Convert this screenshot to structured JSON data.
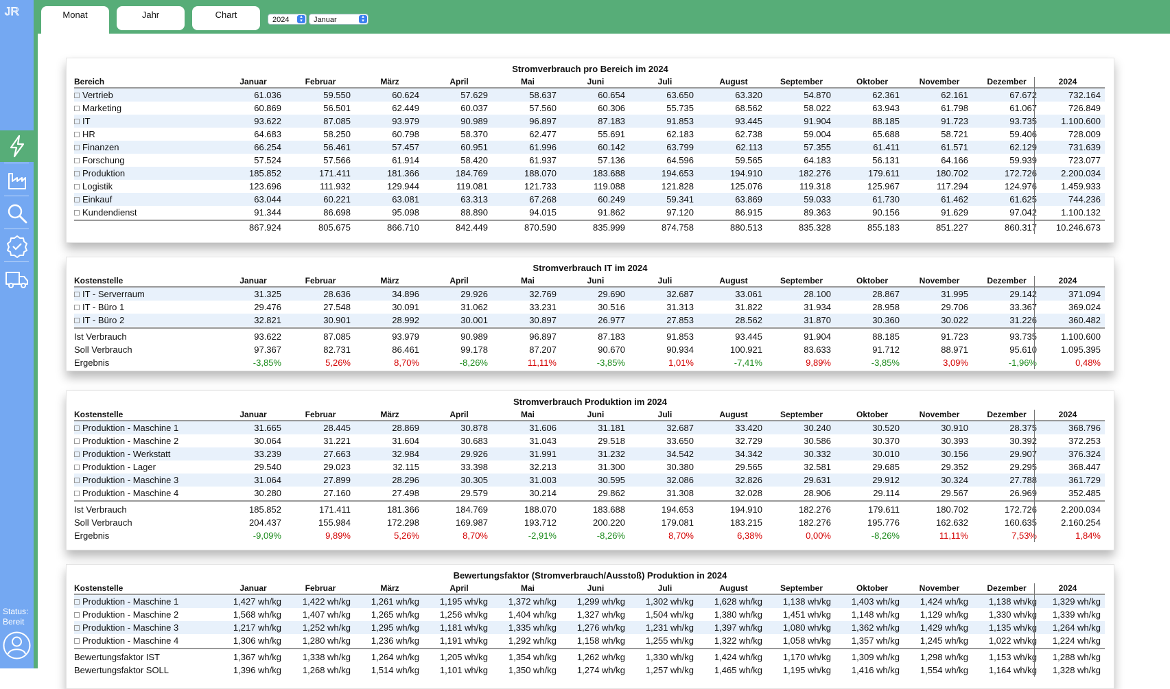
{
  "sidebar": {
    "logo": "JR",
    "nav": [
      {
        "icon": "lightning-icon",
        "active": true
      },
      {
        "icon": "factory-icon",
        "active": false
      },
      {
        "icon": "search-icon",
        "active": false
      },
      {
        "icon": "verified-badge-icon",
        "active": false
      },
      {
        "icon": "truck-icon",
        "active": false
      }
    ],
    "status_label": "Status:",
    "status_value": "Bereit",
    "avatar_icon": "user-icon"
  },
  "tabs": [
    "Monat",
    "Jahr",
    "Chart"
  ],
  "active_tab": "Monat",
  "year_select": "2024",
  "month_select": "Januar",
  "colors": {
    "green": "#57ad78",
    "blue": "#74a8f2",
    "positive": "#d40000",
    "negative": "#1b8a1b",
    "row_alt": "#e8f1fb"
  },
  "months": [
    "Januar",
    "Februar",
    "März",
    "April",
    "Mai",
    "Juni",
    "Juli",
    "August",
    "September",
    "Oktober",
    "November",
    "Dezember"
  ],
  "year_col": "2024",
  "tables": [
    {
      "title": "Stromverbrauch pro Bereich im 2024",
      "first_col": "Bereich",
      "rows": [
        {
          "label": "Vertrieb",
          "values": [
            "61.036",
            "59.550",
            "60.624",
            "57.629",
            "58.637",
            "60.654",
            "63.650",
            "63.320",
            "54.870",
            "62.361",
            "62.161",
            "67.672"
          ],
          "total": "732.164"
        },
        {
          "label": "Marketing",
          "values": [
            "60.869",
            "56.501",
            "62.449",
            "60.037",
            "57.560",
            "60.306",
            "55.735",
            "68.562",
            "58.022",
            "63.943",
            "61.798",
            "61.067"
          ],
          "total": "726.849"
        },
        {
          "label": "IT",
          "values": [
            "93.622",
            "87.085",
            "93.979",
            "90.989",
            "96.897",
            "87.183",
            "91.853",
            "93.445",
            "91.904",
            "88.185",
            "91.723",
            "93.735"
          ],
          "total": "1.100.600"
        },
        {
          "label": "HR",
          "values": [
            "64.683",
            "58.250",
            "60.798",
            "58.370",
            "62.477",
            "55.691",
            "62.183",
            "62.738",
            "59.004",
            "65.688",
            "58.721",
            "59.406"
          ],
          "total": "728.009"
        },
        {
          "label": "Finanzen",
          "values": [
            "66.254",
            "56.461",
            "57.457",
            "60.951",
            "61.996",
            "60.142",
            "63.799",
            "62.113",
            "57.355",
            "61.411",
            "61.571",
            "62.129"
          ],
          "total": "731.639"
        },
        {
          "label": "Forschung",
          "values": [
            "57.524",
            "57.566",
            "61.914",
            "58.420",
            "61.937",
            "57.136",
            "64.596",
            "59.565",
            "64.183",
            "56.131",
            "64.166",
            "59.939"
          ],
          "total": "723.077"
        },
        {
          "label": "Produktion",
          "values": [
            "185.852",
            "171.411",
            "181.366",
            "184.769",
            "188.070",
            "183.688",
            "194.653",
            "194.910",
            "182.276",
            "179.611",
            "180.702",
            "172.726"
          ],
          "total": "2.200.034"
        },
        {
          "label": "Logistik",
          "values": [
            "123.696",
            "111.932",
            "129.944",
            "119.081",
            "121.733",
            "119.088",
            "121.828",
            "125.076",
            "119.318",
            "125.967",
            "117.294",
            "124.976"
          ],
          "total": "1.459.933"
        },
        {
          "label": "Einkauf",
          "values": [
            "63.044",
            "60.221",
            "63.081",
            "63.313",
            "67.268",
            "60.249",
            "59.341",
            "63.869",
            "59.033",
            "61.730",
            "61.462",
            "61.625"
          ],
          "total": "744.236"
        },
        {
          "label": "Kundendienst",
          "values": [
            "91.344",
            "86.698",
            "95.098",
            "88.890",
            "94.015",
            "91.862",
            "97.120",
            "86.915",
            "89.363",
            "90.156",
            "91.629",
            "97.042"
          ],
          "total": "1.100.132"
        }
      ],
      "summary": [
        {
          "label": "",
          "values": [
            "867.924",
            "805.675",
            "866.710",
            "842.449",
            "870.590",
            "835.999",
            "874.758",
            "880.513",
            "835.328",
            "855.183",
            "851.227",
            "860.317"
          ],
          "total": "10.246.673"
        }
      ]
    },
    {
      "title": "Stromverbrauch IT im 2024",
      "first_col": "Kostenstelle",
      "rows": [
        {
          "label": "IT - Serverraum",
          "values": [
            "31.325",
            "28.636",
            "34.896",
            "29.926",
            "32.769",
            "29.690",
            "32.687",
            "33.061",
            "28.100",
            "28.867",
            "31.995",
            "29.142"
          ],
          "total": "371.094"
        },
        {
          "label": "IT - Büro 1",
          "values": [
            "29.476",
            "27.548",
            "30.091",
            "31.062",
            "33.231",
            "30.516",
            "31.313",
            "31.822",
            "31.934",
            "28.958",
            "29.706",
            "33.367"
          ],
          "total": "369.024"
        },
        {
          "label": "IT - Büro 2",
          "values": [
            "32.821",
            "30.901",
            "28.992",
            "30.001",
            "30.897",
            "26.977",
            "27.853",
            "28.562",
            "31.870",
            "30.360",
            "30.022",
            "31.226"
          ],
          "total": "360.482"
        }
      ],
      "summary": [
        {
          "label": "Ist Verbrauch",
          "values": [
            "93.622",
            "87.085",
            "93.979",
            "90.989",
            "96.897",
            "87.183",
            "91.853",
            "93.445",
            "91.904",
            "88.185",
            "91.723",
            "93.735"
          ],
          "total": "1.100.600"
        },
        {
          "label": "Soll Verbrauch",
          "values": [
            "97.367",
            "82.731",
            "86.461",
            "99.178",
            "87.207",
            "90.670",
            "90.934",
            "100.921",
            "83.633",
            "91.712",
            "88.971",
            "95.610"
          ],
          "total": "1.095.395"
        },
        {
          "label": "Ergebnis",
          "values": [
            "-3,85%",
            "5,26%",
            "8,70%",
            "-8,26%",
            "11,11%",
            "-3,85%",
            "1,01%",
            "-7,41%",
            "9,89%",
            "-3,85%",
            "3,09%",
            "-1,96%"
          ],
          "total": "0,48%"
        }
      ]
    },
    {
      "title": "Stromverbrauch Produktion im 2024",
      "first_col": "Kostenstelle",
      "rows": [
        {
          "label": "Produktion - Maschine 1",
          "values": [
            "31.665",
            "28.445",
            "28.869",
            "30.878",
            "31.606",
            "31.181",
            "32.687",
            "33.420",
            "30.240",
            "30.520",
            "30.910",
            "28.375"
          ],
          "total": "368.796"
        },
        {
          "label": "Produktion - Maschine 2",
          "values": [
            "30.064",
            "31.221",
            "31.604",
            "30.683",
            "31.043",
            "29.518",
            "33.650",
            "32.729",
            "30.586",
            "30.370",
            "30.393",
            "30.392"
          ],
          "total": "372.253"
        },
        {
          "label": "Produktion - Werkstatt",
          "values": [
            "33.239",
            "27.663",
            "32.984",
            "29.926",
            "31.991",
            "31.232",
            "34.542",
            "34.342",
            "30.332",
            "30.010",
            "30.156",
            "29.907"
          ],
          "total": "376.324"
        },
        {
          "label": "Produktion - Lager",
          "values": [
            "29.540",
            "29.023",
            "32.115",
            "33.398",
            "32.213",
            "31.300",
            "30.380",
            "29.565",
            "32.581",
            "29.685",
            "29.352",
            "29.295"
          ],
          "total": "368.447"
        },
        {
          "label": "Produktion - Maschine 3",
          "values": [
            "31.064",
            "27.899",
            "28.296",
            "30.305",
            "31.003",
            "30.595",
            "32.086",
            "32.826",
            "29.631",
            "29.912",
            "30.324",
            "27.788"
          ],
          "total": "361.729"
        },
        {
          "label": "Produktion - Maschine 4",
          "values": [
            "30.280",
            "27.160",
            "27.498",
            "29.579",
            "30.214",
            "29.862",
            "31.308",
            "32.028",
            "28.906",
            "29.114",
            "29.567",
            "26.969"
          ],
          "total": "352.485"
        }
      ],
      "summary": [
        {
          "label": "Ist Verbrauch",
          "values": [
            "185.852",
            "171.411",
            "181.366",
            "184.769",
            "188.070",
            "183.688",
            "194.653",
            "194.910",
            "182.276",
            "179.611",
            "180.702",
            "172.726"
          ],
          "total": "2.200.034"
        },
        {
          "label": "Soll Verbrauch",
          "values": [
            "204.437",
            "155.984",
            "172.298",
            "169.987",
            "193.712",
            "200.220",
            "179.081",
            "183.215",
            "182.276",
            "195.776",
            "162.632",
            "160.635"
          ],
          "total": "2.160.254"
        },
        {
          "label": "Ergebnis",
          "values": [
            "-9,09%",
            "9,89%",
            "5,26%",
            "8,70%",
            "-2,91%",
            "-8,26%",
            "8,70%",
            "6,38%",
            "0,00%",
            "-8,26%",
            "11,11%",
            "7,53%"
          ],
          "total": "1,84%"
        }
      ]
    },
    {
      "title": "Bewertungsfaktor (Stromverbrauch/Ausstoß) Produktion in 2024",
      "first_col": "Kostenstelle",
      "rows": [
        {
          "label": "Produktion - Maschine 1",
          "values": [
            "1,427 wh/kg",
            "1,422 wh/kg",
            "1,261 wh/kg",
            "1,195 wh/kg",
            "1,372 wh/kg",
            "1,299 wh/kg",
            "1,302 wh/kg",
            "1,628 wh/kg",
            "1,138 wh/kg",
            "1,403 wh/kg",
            "1,424 wh/kg",
            "1,138 wh/kg"
          ],
          "total": "1,329 wh/kg"
        },
        {
          "label": "Produktion - Maschine 2",
          "values": [
            "1,568 wh/kg",
            "1,407 wh/kg",
            "1,265 wh/kg",
            "1,256 wh/kg",
            "1,404 wh/kg",
            "1,327 wh/kg",
            "1,504 wh/kg",
            "1,380 wh/kg",
            "1,451 wh/kg",
            "1,148 wh/kg",
            "1,129 wh/kg",
            "1,330 wh/kg"
          ],
          "total": "1,339 wh/kg"
        },
        {
          "label": "Produktion - Maschine 3",
          "values": [
            "1,217 wh/kg",
            "1,252 wh/kg",
            "1,295 wh/kg",
            "1,181 wh/kg",
            "1,335 wh/kg",
            "1,276 wh/kg",
            "1,231 wh/kg",
            "1,397 wh/kg",
            "1,080 wh/kg",
            "1,362 wh/kg",
            "1,429 wh/kg",
            "1,135 wh/kg"
          ],
          "total": "1,264 wh/kg"
        },
        {
          "label": "Produktion - Maschine 4",
          "values": [
            "1,306 wh/kg",
            "1,280 wh/kg",
            "1,236 wh/kg",
            "1,191 wh/kg",
            "1,292 wh/kg",
            "1,158 wh/kg",
            "1,255 wh/kg",
            "1,322 wh/kg",
            "1,058 wh/kg",
            "1,357 wh/kg",
            "1,245 wh/kg",
            "1,022 wh/kg"
          ],
          "total": "1,224 wh/kg"
        }
      ],
      "summary": [
        {
          "label": "Bewertungsfaktor IST",
          "values": [
            "1,367 wh/kg",
            "1,338 wh/kg",
            "1,264 wh/kg",
            "1,205 wh/kg",
            "1,354 wh/kg",
            "1,262 wh/kg",
            "1,330 wh/kg",
            "1,424 wh/kg",
            "1,170 wh/kg",
            "1,309 wh/kg",
            "1,298 wh/kg",
            "1,153 wh/kg"
          ],
          "total": "1,288 wh/kg"
        },
        {
          "label": "Bewertungsfaktor SOLL",
          "values": [
            "1,396 wh/kg",
            "1,268 wh/kg",
            "1,514 wh/kg",
            "1,101 wh/kg",
            "1,350 wh/kg",
            "1,274 wh/kg",
            "1,257 wh/kg",
            "1,465 wh/kg",
            "1,195 wh/kg",
            "1,416 wh/kg",
            "1,554 wh/kg",
            "1,164 wh/kg"
          ],
          "total": "1,328 wh/kg"
        }
      ]
    }
  ]
}
